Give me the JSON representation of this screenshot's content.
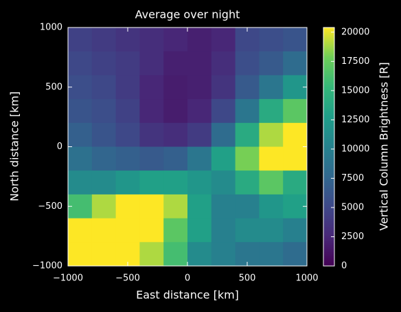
{
  "chart_data": {
    "type": "heatmap",
    "title": "Average over night",
    "xlabel": "East distance [km]",
    "ylabel": "North distance [km]",
    "colorbar_label": "Vertical Column Brightness [R]",
    "colormap": "viridis",
    "x": [
      -900,
      -700,
      -500,
      -300,
      -100,
      100,
      300,
      500,
      700,
      900
    ],
    "y": [
      900,
      700,
      500,
      300,
      100,
      -100,
      -300,
      -500,
      -700,
      -900
    ],
    "z": [
      [
        4500,
        4000,
        3500,
        3000,
        2500,
        2000,
        2500,
        5000,
        5500,
        6000
      ],
      [
        5000,
        4500,
        4000,
        3000,
        2000,
        2000,
        3000,
        5500,
        6500,
        8000
      ],
      [
        5500,
        5000,
        4000,
        2500,
        1800,
        2000,
        3500,
        6500,
        9000,
        12000
      ],
      [
        6000,
        5500,
        4500,
        2500,
        1800,
        2500,
        5000,
        9000,
        14000,
        17000
      ],
      [
        7000,
        6000,
        5000,
        3500,
        3000,
        4000,
        8000,
        14000,
        19000,
        20400
      ],
      [
        8500,
        7500,
        7000,
        6500,
        7000,
        9000,
        13000,
        18000,
        20400,
        20400
      ],
      [
        11000,
        11000,
        12000,
        13000,
        13000,
        12000,
        11000,
        14000,
        17000,
        14000
      ],
      [
        16000,
        19000,
        20400,
        20400,
        19000,
        13000,
        10000,
        10000,
        12000,
        13000
      ],
      [
        20400,
        20400,
        20400,
        20400,
        17000,
        13000,
        10000,
        11000,
        11000,
        10000
      ],
      [
        20400,
        20400,
        20400,
        19000,
        16000,
        11000,
        10000,
        9000,
        9000,
        8000
      ]
    ],
    "xlim": [
      -1000,
      1000
    ],
    "ylim": [
      -1000,
      1000
    ],
    "zlim": [
      0,
      20400
    ],
    "xticks": [
      {
        "value": -1000,
        "label": "−1000"
      },
      {
        "value": -500,
        "label": "−500"
      },
      0,
      500,
      1000
    ],
    "yticks": [
      {
        "value": -1000,
        "label": "−1000"
      },
      {
        "value": -500,
        "label": "−500"
      },
      0,
      500,
      1000
    ],
    "zticks": [
      0,
      2500,
      5000,
      7500,
      10000,
      12500,
      15000,
      17500,
      20000
    ]
  }
}
